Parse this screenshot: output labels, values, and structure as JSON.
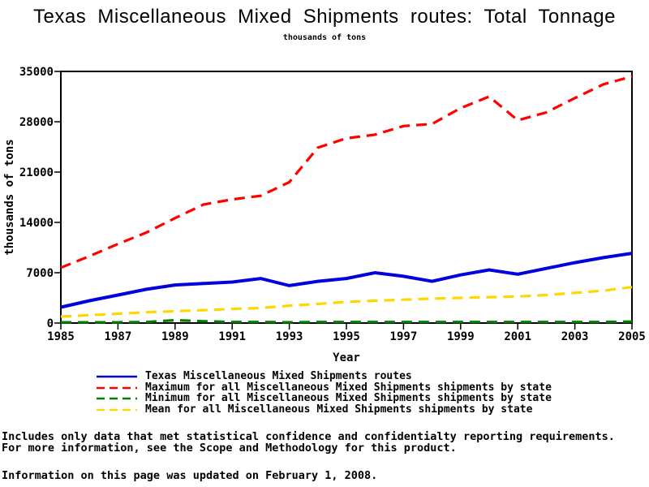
{
  "page": {
    "title": "Texas Miscellaneous Mixed Shipments routes: Total Tonnage",
    "subtitle": "thousands of tons"
  },
  "chart_data": {
    "type": "line",
    "title": "Texas Miscellaneous Mixed Shipments routes: Total Tonnage",
    "subtitle": "thousands of tons",
    "xlabel": "Year",
    "ylabel": "thousands of tons",
    "x_range": [
      1985,
      2005
    ],
    "y_range": [
      0,
      35000
    ],
    "x_ticks": [
      1985,
      1987,
      1989,
      1991,
      1993,
      1995,
      1997,
      1999,
      2001,
      2003,
      2005
    ],
    "y_ticks": [
      0,
      7000,
      14000,
      21000,
      28000,
      35000
    ],
    "grid": false,
    "legend_position": "bottom-left",
    "x": [
      1985,
      1986,
      1987,
      1988,
      1989,
      1990,
      1991,
      1992,
      1993,
      1994,
      1995,
      1996,
      1997,
      1998,
      1999,
      2000,
      2001,
      2002,
      2003,
      2004,
      2005
    ],
    "series": [
      {
        "name": "Texas Miscellaneous Mixed Shipments routes",
        "color": "#0000DC",
        "style": "solid",
        "values": [
          2200,
          3100,
          3900,
          4700,
          5300,
          5500,
          5700,
          6200,
          5200,
          5800,
          6200,
          7000,
          6500,
          5800,
          6700,
          7400,
          6800,
          7600,
          8400,
          9100,
          9700
        ]
      },
      {
        "name": "Maximum for all Miscellaneous Mixed Shipments shipments by state",
        "color": "#FF0000",
        "style": "dashed",
        "values": [
          7700,
          9300,
          11000,
          12600,
          14600,
          16500,
          17200,
          17700,
          19600,
          24400,
          25700,
          26200,
          27400,
          27700,
          29900,
          31500,
          28200,
          29300,
          31300,
          33200,
          34300
        ]
      },
      {
        "name": "Minimum for all Miscellaneous Mixed Shipments shipments by state",
        "color": "#007F00",
        "style": "dashed",
        "values": [
          100,
          100,
          100,
          150,
          400,
          250,
          150,
          150,
          100,
          150,
          150,
          150,
          150,
          150,
          150,
          150,
          150,
          150,
          150,
          150,
          200
        ]
      },
      {
        "name": "Mean for all Miscellaneous Mixed Shipments shipments by state",
        "color": "#FFD700",
        "style": "dashed",
        "values": [
          900,
          1100,
          1300,
          1500,
          1650,
          1800,
          1950,
          2100,
          2400,
          2650,
          2950,
          3100,
          3250,
          3400,
          3500,
          3600,
          3700,
          3900,
          4200,
          4500,
          5000
        ]
      }
    ]
  },
  "footer": {
    "line1": "Includes only data that met statistical confidence and confidentialty reporting requirements.",
    "line2": "For more information, see the Scope and Methodology for this product.",
    "update_note": "Information on this page was updated on February 1, 2008."
  }
}
